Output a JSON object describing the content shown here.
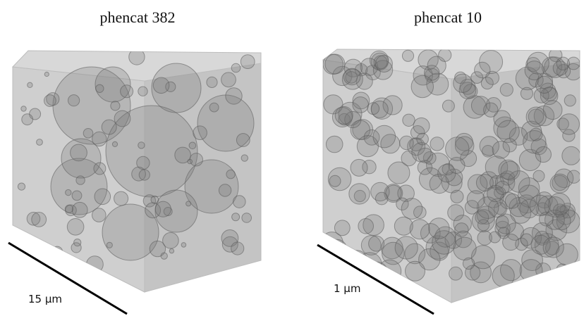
{
  "panels": [
    {
      "title": "phencat 382",
      "scale_label": "15 µm"
    },
    {
      "title": "phencat 10",
      "scale_label": "1 µm"
    }
  ]
}
